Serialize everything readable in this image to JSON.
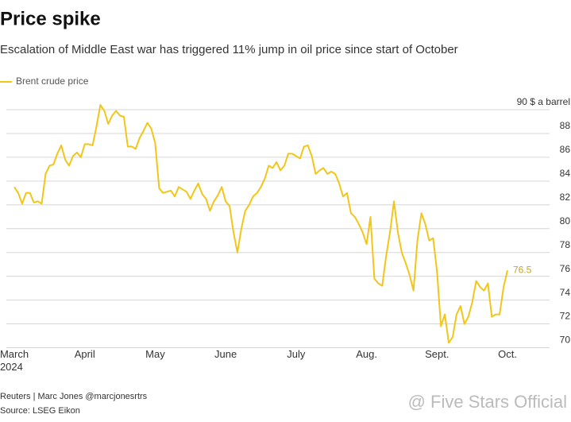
{
  "chart_data": {
    "type": "line",
    "title": "Price spike",
    "subtitle": "Escalation of Middle East war has triggered 11% jump in oil price since start of October",
    "series_name": "Brent crude price",
    "color": "#f2c619",
    "label_color": "#c9a227",
    "source": [
      "Reuters | Marc Jones @marcjonesrtrs",
      "Source: LSEG Eikon"
    ],
    "watermark": "@ Five Stars Official",
    "ylim": [
      69.5,
      90.6
    ],
    "yticks": [
      {
        "value": 90,
        "label": "90 $ a barrel"
      },
      88,
      86,
      84,
      82,
      80,
      78,
      76,
      74,
      72,
      70
    ],
    "grid": true,
    "categories": [
      "March\n2024",
      null,
      null,
      null,
      null,
      null,
      null,
      null,
      null,
      null,
      null,
      null,
      null,
      null,
      null,
      null,
      null,
      null,
      "April",
      null,
      null,
      null,
      null,
      null,
      null,
      null,
      null,
      null,
      null,
      null,
      null,
      null,
      null,
      null,
      null,
      null,
      "May",
      null,
      null,
      null,
      null,
      null,
      null,
      null,
      null,
      null,
      null,
      null,
      null,
      null,
      null,
      null,
      null,
      null,
      "June",
      null,
      null,
      null,
      null,
      null,
      null,
      null,
      null,
      null,
      null,
      null,
      null,
      null,
      null,
      null,
      null,
      null,
      "July",
      null,
      null,
      null,
      null,
      null,
      null,
      null,
      null,
      null,
      null,
      null,
      null,
      null,
      null,
      null,
      null,
      null,
      "Aug.",
      null,
      null,
      null,
      null,
      null,
      null,
      null,
      null,
      null,
      null,
      null,
      null,
      null,
      null,
      null,
      null,
      null,
      "Sept.",
      null,
      null,
      null,
      null,
      null,
      null,
      null,
      null,
      null,
      null,
      null,
      null,
      null,
      null,
      null,
      null,
      null,
      "Oct."
    ],
    "values": [
      83.5,
      83.0,
      82.1,
      83.0,
      83.0,
      82.2,
      82.3,
      82.1,
      84.6,
      85.3,
      85.4,
      86.3,
      87.0,
      85.8,
      85.3,
      86.1,
      86.4,
      86.0,
      87.1,
      87.1,
      87.0,
      88.6,
      90.4,
      89.9,
      88.8,
      89.5,
      89.9,
      89.5,
      89.4,
      86.9,
      86.9,
      86.7,
      87.6,
      88.2,
      88.9,
      88.4,
      87.2,
      83.4,
      83.0,
      83.1,
      83.2,
      82.7,
      83.5,
      83.3,
      83.1,
      82.5,
      83.2,
      83.8,
      82.9,
      82.5,
      81.5,
      82.3,
      82.8,
      83.5,
      82.3,
      81.9,
      79.7,
      78.0,
      80.0,
      81.5,
      82.0,
      82.7,
      83.0,
      83.5,
      84.2,
      85.3,
      85.1,
      85.6,
      84.9,
      85.3,
      86.3,
      86.3,
      86.1,
      85.9,
      86.9,
      87.0,
      86.1,
      84.6,
      84.9,
      85.1,
      84.6,
      84.8,
      84.6,
      83.8,
      82.7,
      83.0,
      81.3,
      81.0,
      80.4,
      79.7,
      78.7,
      81.0,
      75.8,
      75.4,
      75.2,
      77.7,
      79.7,
      82.3,
      79.7,
      78.0,
      77.1,
      76.1,
      74.8,
      79.0,
      81.3,
      80.4,
      79.0,
      79.2,
      76.4,
      71.8,
      72.8,
      70.4,
      70.9,
      72.8,
      73.5,
      72.0,
      72.6,
      73.8,
      75.6,
      75.1,
      74.8,
      75.4,
      72.6,
      72.8,
      72.8,
      75.1,
      76.5
    ]
  }
}
